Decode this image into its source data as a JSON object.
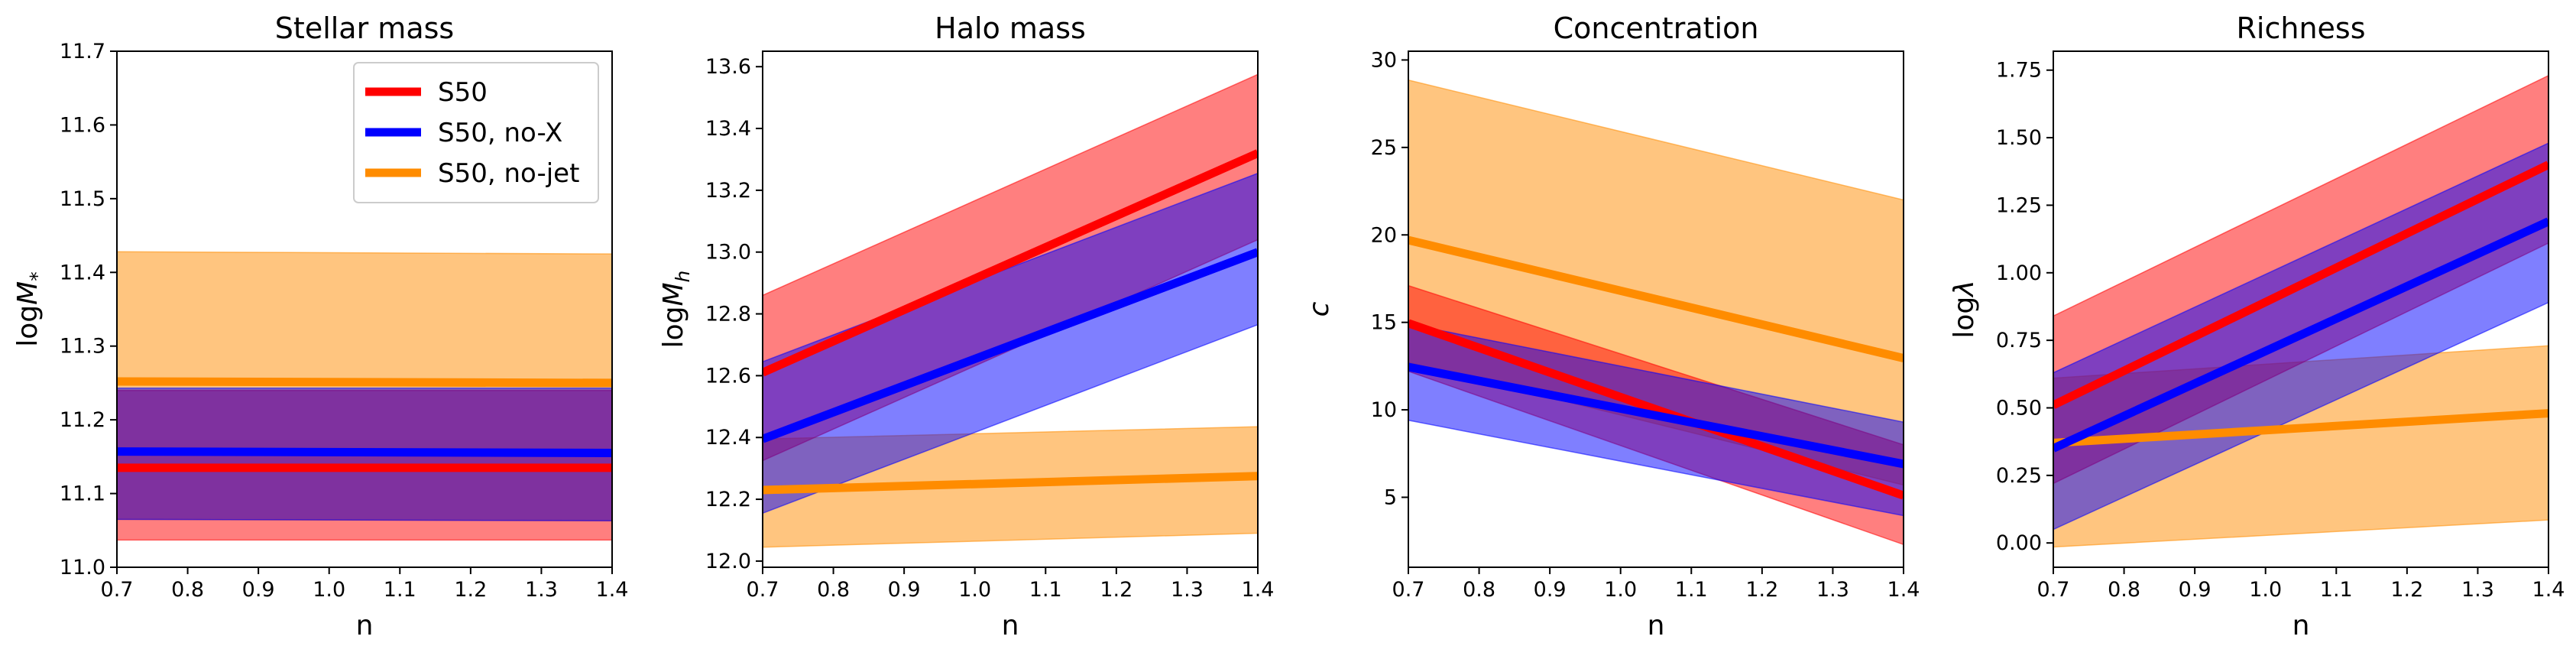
{
  "colors": {
    "S50": "#ff0000",
    "S50, no-X": "#0000ff",
    "S50, no-jet": "#ff8c00"
  },
  "chart_data": [
    {
      "type": "line",
      "title": "Stellar mass",
      "xlabel": "n",
      "ylabel": "logM*",
      "ylabel_base": "log",
      "ylabel_var": "M",
      "ylabel_sub": "*",
      "xlim": [
        0.7,
        1.4
      ],
      "ylim": [
        11.0,
        11.7
      ],
      "xticks": [
        "0.7",
        "0.8",
        "0.9",
        "1.0",
        "1.1",
        "1.2",
        "1.3",
        "1.4"
      ],
      "yticks": [
        "11.0",
        "11.1",
        "11.2",
        "11.3",
        "11.4",
        "11.5",
        "11.6",
        "11.7"
      ],
      "legend": {
        "position": "top-right",
        "entries": [
          "S50",
          "S50, no-X",
          "S50, no-jet"
        ]
      },
      "series": [
        {
          "name": "S50, no-jet",
          "x": [
            0.7,
            1.4
          ],
          "y": [
            11.252,
            11.25
          ],
          "lower": [
            11.065,
            11.063
          ],
          "upper": [
            11.428,
            11.425
          ]
        },
        {
          "name": "S50",
          "x": [
            0.7,
            1.4
          ],
          "y": [
            11.135,
            11.135
          ],
          "lower": [
            11.037,
            11.037
          ],
          "upper": [
            11.24,
            11.24
          ]
        },
        {
          "name": "S50, no-X",
          "x": [
            0.7,
            1.4
          ],
          "y": [
            11.157,
            11.155
          ],
          "lower": [
            11.065,
            11.063
          ],
          "upper": [
            11.243,
            11.243
          ]
        }
      ]
    },
    {
      "type": "line",
      "title": "Halo mass",
      "xlabel": "n",
      "ylabel": "logMh",
      "ylabel_base": "log",
      "ylabel_var": "M",
      "ylabel_sub": "h",
      "xlim": [
        0.7,
        1.4
      ],
      "ylim": [
        11.98,
        13.65
      ],
      "xticks": [
        "0.7",
        "0.8",
        "0.9",
        "1.0",
        "1.1",
        "1.2",
        "1.3",
        "1.4"
      ],
      "yticks": [
        "12.0",
        "12.2",
        "12.4",
        "12.6",
        "12.8",
        "13.0",
        "13.2",
        "13.4",
        "13.6"
      ],
      "series": [
        {
          "name": "S50, no-jet",
          "x": [
            0.7,
            1.4
          ],
          "y": [
            12.23,
            12.275
          ],
          "lower": [
            12.045,
            12.09
          ],
          "upper": [
            12.395,
            12.435
          ]
        },
        {
          "name": "S50",
          "x": [
            0.7,
            1.4
          ],
          "y": [
            12.61,
            13.32
          ],
          "lower": [
            12.325,
            13.04
          ],
          "upper": [
            12.86,
            13.575
          ]
        },
        {
          "name": "S50, no-X",
          "x": [
            0.7,
            1.4
          ],
          "y": [
            12.395,
            13.0
          ],
          "lower": [
            12.155,
            12.765
          ],
          "upper": [
            12.645,
            13.255
          ]
        }
      ]
    },
    {
      "type": "line",
      "title": "Concentration",
      "xlabel": "n",
      "ylabel": "c",
      "xlim": [
        0.7,
        1.4
      ],
      "ylim": [
        1.0,
        30.5
      ],
      "xticks": [
        "0.7",
        "0.8",
        "0.9",
        "1.0",
        "1.1",
        "1.2",
        "1.3",
        "1.4"
      ],
      "yticks": [
        "5",
        "10",
        "15",
        "20",
        "25",
        "30"
      ],
      "series": [
        {
          "name": "S50, no-jet",
          "x": [
            0.7,
            1.4
          ],
          "y": [
            19.7,
            12.95
          ],
          "lower": [
            12.7,
            5.7
          ],
          "upper": [
            28.85,
            22.0
          ]
        },
        {
          "name": "S50",
          "x": [
            0.7,
            1.4
          ],
          "y": [
            14.95,
            5.1
          ],
          "lower": [
            12.2,
            2.3
          ],
          "upper": [
            17.1,
            8.0
          ]
        },
        {
          "name": "S50, no-X",
          "x": [
            0.7,
            1.4
          ],
          "y": [
            12.45,
            6.9
          ],
          "lower": [
            9.4,
            3.95
          ],
          "upper": [
            14.9,
            9.3
          ]
        }
      ]
    },
    {
      "type": "line",
      "title": "Richness",
      "xlabel": "n",
      "ylabel": "logλ",
      "ylabel_base": "log",
      "ylabel_var": "λ",
      "xlim": [
        0.7,
        1.4
      ],
      "ylim": [
        -0.09,
        1.82
      ],
      "xticks": [
        "0.7",
        "0.8",
        "0.9",
        "1.0",
        "1.1",
        "1.2",
        "1.3",
        "1.4"
      ],
      "yticks": [
        "0.00",
        "0.25",
        "0.50",
        "0.75",
        "1.00",
        "1.25",
        "1.50",
        "1.75"
      ],
      "series": [
        {
          "name": "S50, no-jet",
          "x": [
            0.7,
            1.4
          ],
          "y": [
            0.37,
            0.48
          ],
          "lower": [
            -0.015,
            0.085
          ],
          "upper": [
            0.61,
            0.73
          ]
        },
        {
          "name": "S50",
          "x": [
            0.7,
            1.4
          ],
          "y": [
            0.51,
            1.4
          ],
          "lower": [
            0.22,
            1.11
          ],
          "upper": [
            0.84,
            1.73
          ]
        },
        {
          "name": "S50, no-X",
          "x": [
            0.7,
            1.4
          ],
          "y": [
            0.35,
            1.19
          ],
          "lower": [
            0.05,
            0.89
          ],
          "upper": [
            0.63,
            1.48
          ]
        }
      ]
    }
  ]
}
